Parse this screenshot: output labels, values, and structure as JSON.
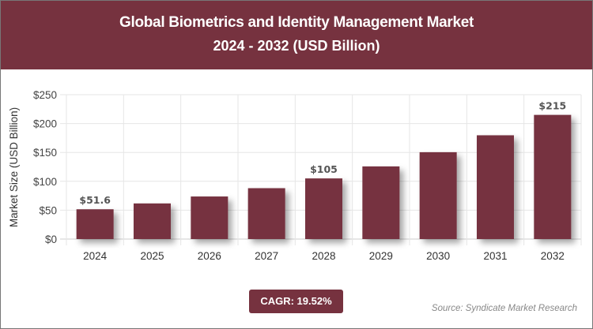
{
  "chart_data": {
    "type": "bar",
    "title": "Global Biometrics and Identity Management Market",
    "subtitle": "2024 - 2032 (USD Billion)",
    "xlabel": "",
    "ylabel": "Market Size (USD Billion)",
    "categories": [
      "2024",
      "2025",
      "2026",
      "2027",
      "2028",
      "2029",
      "2030",
      "2031",
      "2032"
    ],
    "values": [
      51.6,
      61.7,
      73.7,
      88.1,
      105,
      125.8,
      150.4,
      179.7,
      215
    ],
    "data_labels": {
      "0": "$51.6",
      "4": "$105",
      "8": "$215"
    },
    "ylim": [
      0,
      250
    ],
    "yticks": [
      "$0",
      "$50",
      "$100",
      "$150",
      "$200",
      "$250"
    ],
    "grid": true,
    "bar_color": "#76323f"
  },
  "cagr_label": "CAGR: 19.52%",
  "source": "Source: Syndicate Market Research"
}
